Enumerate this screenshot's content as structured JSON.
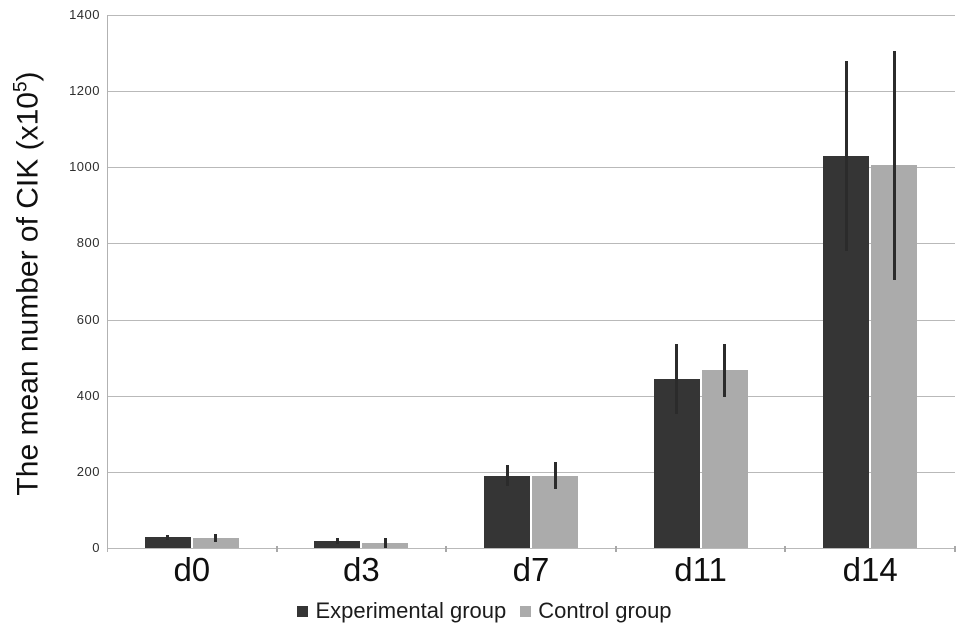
{
  "figure": {
    "background": "#ffffff"
  },
  "chart_data": {
    "type": "bar",
    "title": "",
    "xlabel": "",
    "ylabel": "The mean number of CIK (x10⁵)",
    "ylabel_parts": {
      "main": "The mean number of CIK (x10",
      "sup": "5",
      "close": ")"
    },
    "categories": [
      "d0",
      "d3",
      "d7",
      "d11",
      "d14"
    ],
    "series": [
      {
        "name": "Experimental group",
        "color": "#353535",
        "values": [
          28,
          18,
          190,
          445,
          1030
        ],
        "errors": [
          6,
          8,
          28,
          92,
          250
        ]
      },
      {
        "name": "Control group",
        "color": "#ababab",
        "values": [
          26,
          14,
          190,
          467,
          1005
        ],
        "errors": [
          10,
          13,
          36,
          70,
          300
        ]
      }
    ],
    "ylim": [
      0,
      1400
    ],
    "ytick_step": 200,
    "yticks": [
      0,
      200,
      400,
      600,
      800,
      1000,
      1200,
      1400
    ],
    "grid": true,
    "legend_position": "bottom",
    "colors": {
      "grid": "#b9b9b9",
      "axis": "#b2b2b2",
      "error_bar": "#2b2b2b",
      "minor_tick": "#a8a8a8"
    }
  }
}
